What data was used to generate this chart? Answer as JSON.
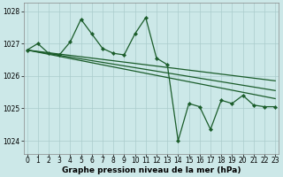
{
  "background_color": "#cce8e8",
  "grid_color": "#aacccc",
  "line_color": "#1a5c2a",
  "marker_line": {
    "x": [
      0,
      1,
      2,
      3,
      4,
      5,
      6,
      7,
      8,
      9,
      10,
      11,
      12,
      13,
      14,
      15,
      16,
      17,
      18,
      19,
      20,
      21,
      22,
      23
    ],
    "y": [
      1026.8,
      1027.0,
      1026.7,
      1026.65,
      1027.05,
      1027.75,
      1027.3,
      1026.85,
      1026.7,
      1026.65,
      1027.3,
      1027.8,
      1026.55,
      1026.35,
      1024.0,
      1025.15,
      1025.05,
      1024.35,
      1025.25,
      1025.15,
      1025.4,
      1025.1,
      1025.05,
      1025.05
    ]
  },
  "straight_lines": [
    {
      "x0": 0,
      "y0": 1026.8,
      "x1": 23,
      "y1": 1025.85
    },
    {
      "x0": 0,
      "y0": 1026.8,
      "x1": 23,
      "y1": 1025.55
    },
    {
      "x0": 0,
      "y0": 1026.8,
      "x1": 23,
      "y1": 1025.3
    }
  ],
  "xlim": [
    -0.3,
    23.3
  ],
  "ylim": [
    1023.6,
    1028.25
  ],
  "yticks": [
    1024,
    1025,
    1026,
    1027,
    1028
  ],
  "xticks": [
    0,
    1,
    2,
    3,
    4,
    5,
    6,
    7,
    8,
    9,
    10,
    11,
    12,
    13,
    14,
    15,
    16,
    17,
    18,
    19,
    20,
    21,
    22,
    23
  ],
  "xlabel": "Graphe pression niveau de la mer (hPa)",
  "xlabel_fontsize": 6.5,
  "tick_fontsize": 5.5
}
